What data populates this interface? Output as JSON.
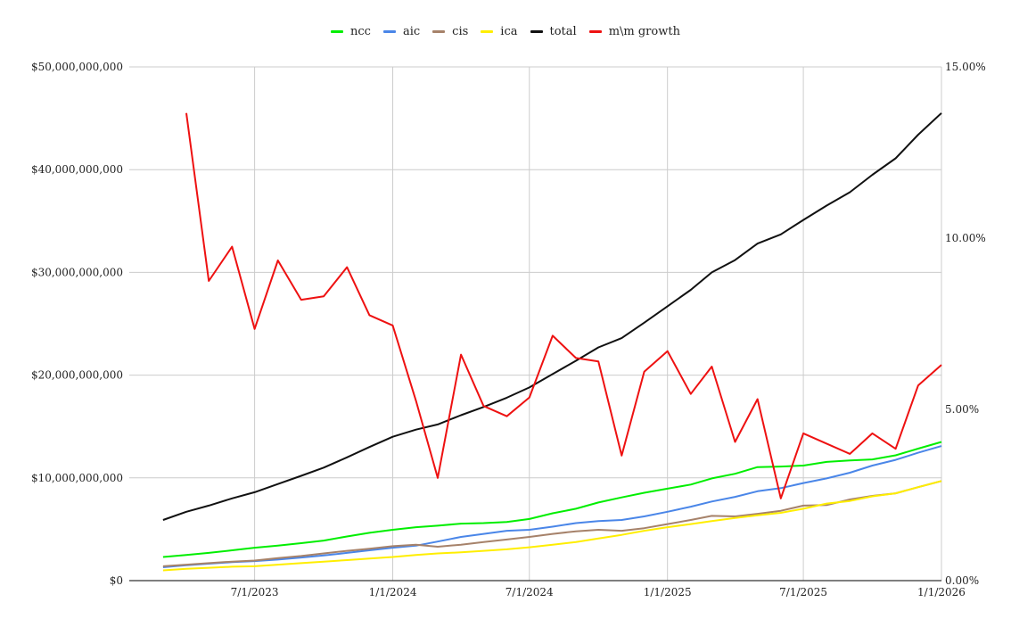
{
  "chart_data": {
    "type": "line",
    "legend_position": "top-center",
    "grid": true,
    "x_ticks": [
      "7/1/2023",
      "1/1/2024",
      "7/1/2024",
      "1/1/2025",
      "7/1/2025",
      "1/1/2026"
    ],
    "y_left": {
      "ticks": [
        "$0",
        "$10,000,000,000",
        "$20,000,000,000",
        "$30,000,000,000",
        "$40,000,000,000",
        "$50,000,000,000"
      ],
      "range": [
        0,
        50000000000
      ]
    },
    "y_right": {
      "ticks": [
        "0.00%",
        "5.00%",
        "10.00%",
        "15.00%"
      ],
      "range": [
        0,
        15
      ]
    },
    "x": [
      "2023-03-01",
      "2023-04-01",
      "2023-05-01",
      "2023-06-01",
      "2023-07-01",
      "2023-08-01",
      "2023-09-01",
      "2023-10-01",
      "2023-11-01",
      "2023-12-01",
      "2024-01-01",
      "2024-02-01",
      "2024-03-01",
      "2024-04-01",
      "2024-05-01",
      "2024-06-01",
      "2024-07-01",
      "2024-08-01",
      "2024-09-01",
      "2024-10-01",
      "2024-11-01",
      "2024-12-01",
      "2025-01-01",
      "2025-02-01",
      "2025-03-01",
      "2025-04-01",
      "2025-05-01",
      "2025-06-01",
      "2025-07-01",
      "2025-08-01",
      "2025-09-01",
      "2025-10-01",
      "2025-11-01",
      "2025-12-01",
      "2026-01-01"
    ],
    "series": [
      {
        "name": "ncc",
        "axis": "left",
        "color": "#00ee00",
        "values": [
          2300000000,
          2500000000,
          2700000000,
          2950000000,
          3200000000,
          3400000000,
          3650000000,
          3900000000,
          4300000000,
          4650000000,
          4950000000,
          5200000000,
          5350000000,
          5550000000,
          5600000000,
          5700000000,
          6000000000,
          6550000000,
          7000000000,
          7600000000,
          8100000000,
          8550000000,
          8950000000,
          9350000000,
          9950000000,
          10400000000,
          11050000000,
          11100000000,
          11200000000,
          11550000000,
          11700000000,
          11800000000,
          12200000000,
          12850000000,
          13500000000
        ]
      },
      {
        "name": "aic",
        "axis": "left",
        "color": "#4a86e8",
        "values": [
          1300000000,
          1500000000,
          1650000000,
          1800000000,
          1900000000,
          2050000000,
          2250000000,
          2450000000,
          2700000000,
          2950000000,
          3200000000,
          3400000000,
          3800000000,
          4250000000,
          4550000000,
          4850000000,
          4950000000,
          5250000000,
          5600000000,
          5800000000,
          5900000000,
          6250000000,
          6700000000,
          7200000000,
          7700000000,
          8150000000,
          8700000000,
          9000000000,
          9500000000,
          9950000000,
          10500000000,
          11200000000,
          11750000000,
          12450000000,
          13100000000
        ]
      },
      {
        "name": "cis",
        "axis": "left",
        "color": "#a6826a",
        "values": [
          1400000000,
          1550000000,
          1700000000,
          1850000000,
          1950000000,
          2200000000,
          2400000000,
          2650000000,
          2900000000,
          3100000000,
          3350000000,
          3500000000,
          3300000000,
          3500000000,
          3750000000,
          4000000000,
          4250000000,
          4550000000,
          4800000000,
          4950000000,
          4850000000,
          5100000000,
          5500000000,
          5900000000,
          6300000000,
          6250000000,
          6500000000,
          6800000000,
          7300000000,
          7350000000,
          7900000000,
          8250000000,
          8500000000,
          9100000000,
          9700000000
        ]
      },
      {
        "name": "ica",
        "axis": "left",
        "color": "#ffee00",
        "values": [
          1000000000,
          1150000000,
          1250000000,
          1350000000,
          1400000000,
          1550000000,
          1700000000,
          1850000000,
          2000000000,
          2150000000,
          2300000000,
          2500000000,
          2650000000,
          2750000000,
          2900000000,
          3050000000,
          3250000000,
          3500000000,
          3750000000,
          4100000000,
          4450000000,
          4850000000,
          5200000000,
          5500000000,
          5800000000,
          6100000000,
          6350000000,
          6600000000,
          7000000000,
          7500000000,
          7750000000,
          8200000000,
          8500000000,
          9100000000,
          9700000000
        ]
      },
      {
        "name": "total",
        "axis": "left",
        "color": "#111111",
        "values": [
          5900000000,
          6700000000,
          7300000000,
          8000000000,
          8600000000,
          9400000000,
          10200000000,
          11000000000,
          12000000000,
          13000000000,
          14000000000,
          14700000000,
          15200000000,
          16100000000,
          16900000000,
          17800000000,
          18800000000,
          20100000000,
          21400000000,
          22700000000,
          23600000000,
          25100000000,
          26700000000,
          28300000000,
          30000000000,
          31200000000,
          32800000000,
          33700000000,
          35100000000,
          36500000000,
          37800000000,
          39500000000,
          41100000000,
          43400000000,
          45500000000
        ]
      },
      {
        "name": "m\\m growth",
        "axis": "right",
        "color": "#ee1111",
        "values": [
          null,
          13.65,
          8.75,
          9.75,
          7.35,
          9.35,
          8.2,
          8.3,
          9.15,
          7.75,
          7.45,
          5.25,
          3.0,
          6.6,
          5.1,
          4.8,
          5.35,
          7.15,
          6.5,
          6.4,
          3.65,
          6.1,
          6.7,
          5.45,
          6.25,
          4.05,
          5.3,
          2.4,
          4.3,
          4.0,
          3.7,
          4.3,
          3.85,
          5.7,
          6.3
        ]
      }
    ]
  },
  "colors": {
    "grid": "#cccccc",
    "axis": "#333333",
    "background": "#ffffff"
  }
}
